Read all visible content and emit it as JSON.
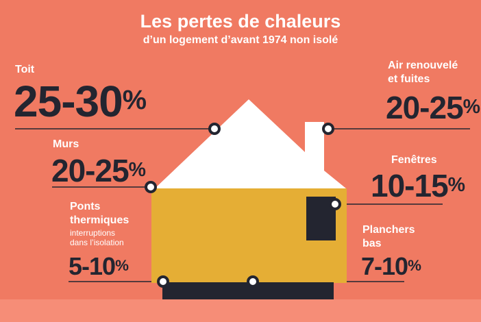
{
  "title": "Les pertes de chaleurs",
  "subtitle": "d’un logement d’avant 1974 non isolé",
  "items": {
    "toit": {
      "label": "Toit",
      "range": "25-30",
      "unit": "%"
    },
    "air": {
      "label_line1": "Air renouvelé",
      "label_line2": "et fuites",
      "range": "20-25",
      "unit": "%"
    },
    "murs": {
      "label": "Murs",
      "range": "20-25",
      "unit": "%"
    },
    "fenetres": {
      "label": "Fenêtres",
      "range": "10-15",
      "unit": "%"
    },
    "ponts": {
      "label_line1": "Ponts",
      "label_line2": "thermiques",
      "note_line1": "interruptions",
      "note_line2": "dans l’isolation",
      "range": "5-10",
      "unit": "%"
    },
    "planchers": {
      "label_line1": "Planchers",
      "label_line2": "bas",
      "range": "7-10",
      "unit": "%"
    }
  },
  "colors": {
    "background": "#F07A62",
    "band": "#F68D77",
    "roof": "#FFFFFF",
    "wall": "#E5AE35",
    "dark": "#232530"
  }
}
